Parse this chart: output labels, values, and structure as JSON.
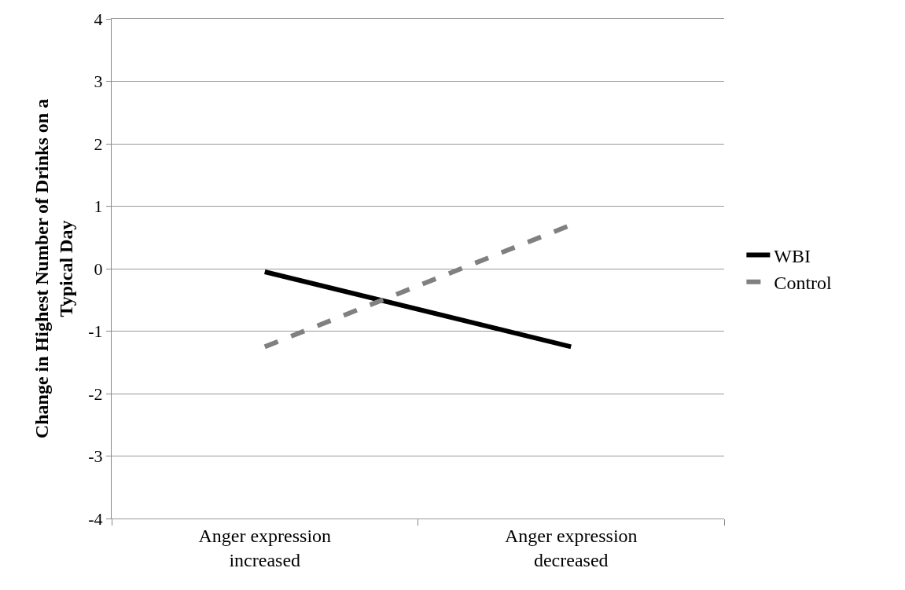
{
  "chart_data": {
    "type": "line",
    "ylabel": "Change in Highest Number of Drinks on a Typical Day",
    "categories": [
      "Anger expression increased",
      "Anger expression decreased"
    ],
    "series": [
      {
        "name": "WBI",
        "color": "#000000",
        "values": [
          -0.05,
          -1.25
        ],
        "line_style": "solid"
      },
      {
        "name": "Control",
        "color": "#808080",
        "values": [
          -1.25,
          0.7
        ],
        "line_style": "dashed"
      }
    ],
    "ylim": [
      -4,
      4
    ],
    "yticks": [
      -4,
      -3,
      -2,
      -1,
      0,
      1,
      2,
      3,
      4
    ],
    "grid": "y",
    "legend": "right",
    "marker": "none"
  }
}
